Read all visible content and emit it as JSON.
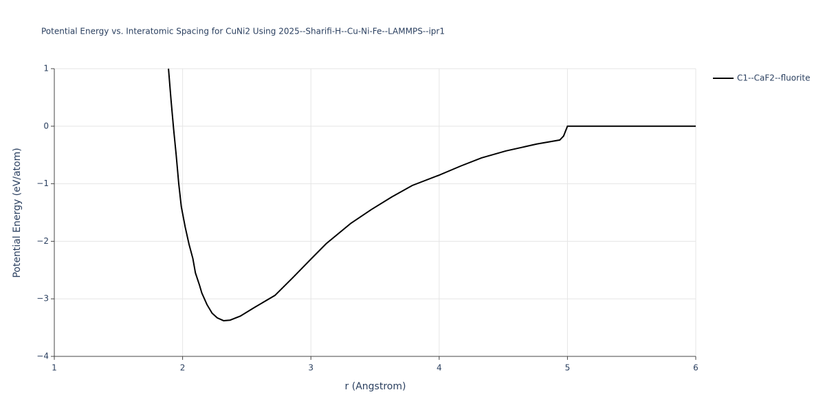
{
  "chart_data": {
    "type": "line",
    "title": "Potential Energy vs. Interatomic Spacing for CuNi2 Using 2025--Sharifi-H--Cu-Ni-Fe--LAMMPS--ipr1",
    "x_label": "r (Angstrom)",
    "y_label": "Potential Energy (eV/atom)",
    "x": [
      1.89,
      1.91,
      1.93,
      1.95,
      1.97,
      1.99,
      2.02,
      2.05,
      2.08,
      2.1,
      2.13,
      2.15,
      2.19,
      2.23,
      2.27,
      2.32,
      2.37,
      2.45,
      2.56,
      2.72,
      2.86,
      3.0,
      3.12,
      3.31,
      3.47,
      3.63,
      3.79,
      4.0,
      4.17,
      4.33,
      4.52,
      4.76,
      4.94,
      4.97,
      5.0,
      5.5,
      6.0
    ],
    "series": [
      {
        "name": "C1--CaF2--fluorite",
        "color": "#000000",
        "values": [
          1.0,
          0.45,
          -0.05,
          -0.5,
          -1.0,
          -1.4,
          -1.75,
          -2.05,
          -2.3,
          -2.55,
          -2.75,
          -2.9,
          -3.1,
          -3.25,
          -3.33,
          -3.38,
          -3.37,
          -3.3,
          -3.15,
          -2.94,
          -2.63,
          -2.31,
          -2.04,
          -1.69,
          -1.45,
          -1.23,
          -1.03,
          -0.85,
          -0.69,
          -0.55,
          -0.43,
          -0.31,
          -0.24,
          -0.17,
          0.0,
          0.0,
          0.0
        ]
      }
    ],
    "xlim": [
      1,
      6
    ],
    "ylim": [
      -4,
      1
    ],
    "xticks": [
      1,
      2,
      3,
      4,
      5,
      6
    ],
    "yticks": [
      {
        "value": -4,
        "label": "−4"
      },
      {
        "value": -3,
        "label": "−3"
      },
      {
        "value": -2,
        "label": "−2"
      },
      {
        "value": -1,
        "label": "−1"
      },
      0,
      1
    ],
    "grid": true,
    "legend": "right"
  }
}
